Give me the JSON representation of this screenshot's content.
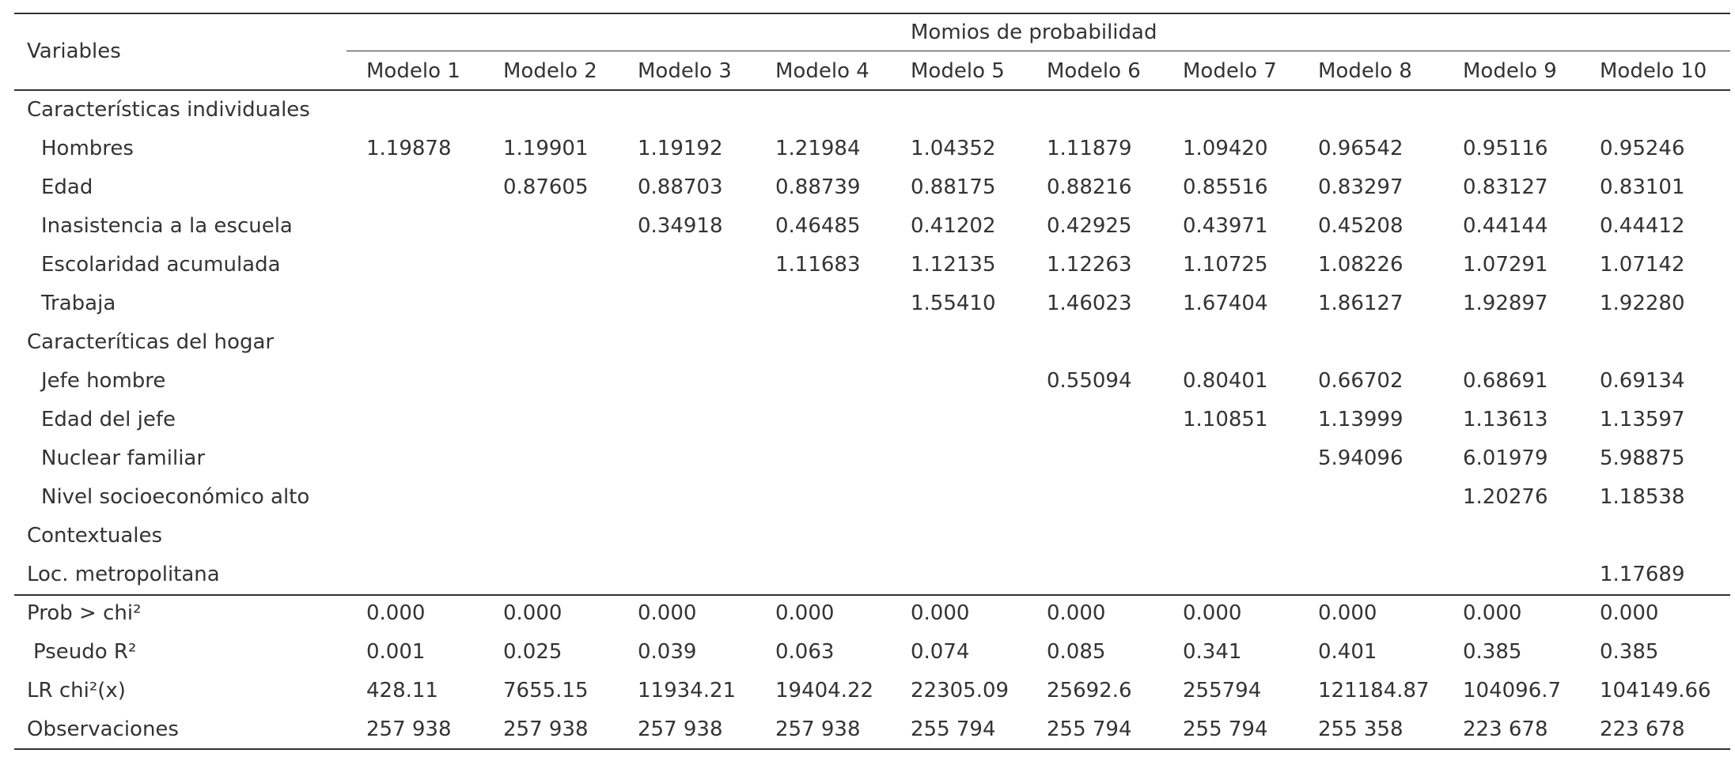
{
  "table": {
    "corner": "Variables",
    "group_header": "Momios de probabilidad",
    "columns": [
      "Modelo 1",
      "Modelo 2",
      "Modelo 3",
      "Modelo 4",
      "Modelo 5",
      "Modelo 6",
      "Modelo 7",
      "Modelo 8",
      "Modelo 9",
      "Modelo 10"
    ],
    "rows": [
      {
        "label": "Características individuales"
      },
      {
        "label": "Hombres",
        "values": [
          "1.19878",
          "1.19901",
          "1.19192",
          "1.21984",
          "1.04352",
          "1.11879",
          "1.09420",
          "0.96542",
          "0.95116",
          "0.95246"
        ]
      },
      {
        "label": "Edad",
        "values": [
          null,
          "0.87605",
          "0.88703",
          "0.88739",
          "0.88175",
          "0.88216",
          "0.85516",
          "0.83297",
          "0.83127",
          "0.83101"
        ]
      },
      {
        "label": "Inasistencia a la escuela",
        "values": [
          null,
          null,
          "0.34918",
          "0.46485",
          "0.41202",
          "0.42925",
          "0.43971",
          "0.45208",
          "0.44144",
          "0.44412"
        ]
      },
      {
        "label": "Escolaridad acumulada",
        "values": [
          null,
          null,
          null,
          "1.11683",
          "1.12135",
          "1.12263",
          "1.10725",
          "1.08226",
          "1.07291",
          "1.07142"
        ]
      },
      {
        "label": "Trabaja",
        "values": [
          null,
          null,
          null,
          null,
          "1.55410",
          "1.46023",
          "1.67404",
          "1.86127",
          "1.92897",
          "1.92280"
        ]
      },
      {
        "label": "Caracteríticas del hogar"
      },
      {
        "label": "Jefe hombre",
        "values": [
          null,
          null,
          null,
          null,
          null,
          "0.55094",
          "0.80401",
          "0.66702",
          "0.68691",
          "0.69134"
        ]
      },
      {
        "label": "Edad del jefe",
        "values": [
          null,
          null,
          null,
          null,
          null,
          null,
          "1.10851",
          "1.13999",
          "1.13613",
          "1.13597"
        ]
      },
      {
        "label": "Nuclear familiar",
        "values": [
          null,
          null,
          null,
          null,
          null,
          null,
          null,
          "5.94096",
          "6.01979",
          "5.98875"
        ]
      },
      {
        "label": "Nivel socioeconómico alto",
        "values": [
          null,
          null,
          null,
          null,
          null,
          null,
          null,
          null,
          "1.20276",
          "1.18538"
        ]
      },
      {
        "label": "Contextuales"
      },
      {
        "label": "Loc. metropolitana",
        "values": [
          null,
          null,
          null,
          null,
          null,
          null,
          null,
          null,
          null,
          "1.17689"
        ]
      }
    ],
    "stats": [
      {
        "label": "Prob > chi²",
        "values": [
          "0.000",
          "0.000",
          "0.000",
          "0.000",
          "0.000",
          "0.000",
          "0.000",
          "0.000",
          "0.000",
          "0.000"
        ]
      },
      {
        "label": "Pseudo R²",
        "values": [
          "0.001",
          "0.025",
          "0.039",
          "0.063",
          "0.074",
          "0.085",
          "0.341",
          "0.401",
          "0.385",
          "0.385"
        ]
      },
      {
        "label": "LR chi²(x)",
        "values": [
          "428.11",
          "7655.15",
          "11934.21",
          "19404.22",
          "22305.09",
          "25692.6",
          "255794",
          "121184.87",
          "104096.7",
          "104149.66"
        ]
      },
      {
        "label": "Observaciones",
        "values": [
          "257 938",
          "257 938",
          "257 938",
          "257 938",
          "255 794",
          "255 794",
          "255 794",
          "255 358",
          "223 678",
          "223 678"
        ]
      }
    ]
  }
}
